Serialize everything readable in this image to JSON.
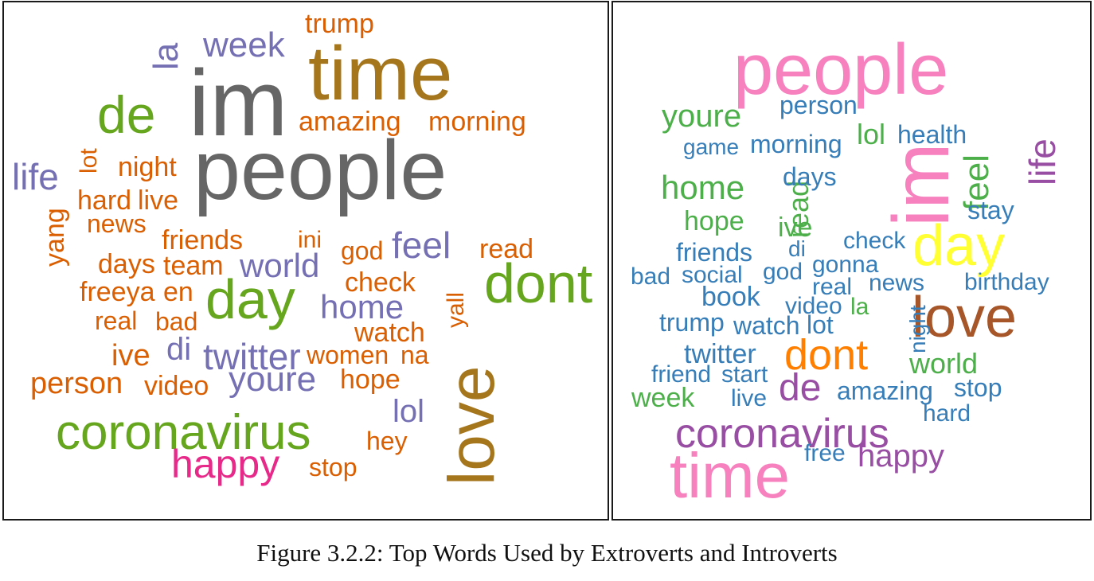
{
  "figure": {
    "caption": "Figure 3.2.2: Top Words Used by Extroverts and Introverts"
  },
  "colors": {
    "grey": "#666666",
    "olive_brown": "#a6761d",
    "green": "#66a61e",
    "orange": "#d95f02",
    "purple": "#7570b3",
    "magenta": "#e7298a",
    "pink": "#f781bf",
    "violet": "#984ea3",
    "steel_blue": "#377eb8",
    "mid_green": "#4daf4a",
    "bright_orange": "#ff7f00",
    "yellow": "#ffff33",
    "brown": "#a65628"
  },
  "extroverts_cloud": {
    "words": [
      {
        "text": "im",
        "color": "#666666",
        "rotated": false
      },
      {
        "text": "people",
        "color": "#666666",
        "rotated": false
      },
      {
        "text": "time",
        "color": "#a6761d",
        "rotated": false
      },
      {
        "text": "love",
        "color": "#a6761d",
        "rotated": true
      },
      {
        "text": "dont",
        "color": "#66a61e",
        "rotated": false
      },
      {
        "text": "day",
        "color": "#66a61e",
        "rotated": false
      },
      {
        "text": "de",
        "color": "#66a61e",
        "rotated": false
      },
      {
        "text": "coronavirus",
        "color": "#66a61e",
        "rotated": false
      },
      {
        "text": "happy",
        "color": "#e7298a",
        "rotated": false
      },
      {
        "text": "trump",
        "color": "#d95f02",
        "rotated": false
      },
      {
        "text": "week",
        "color": "#7570b3",
        "rotated": false
      },
      {
        "text": "la",
        "color": "#7570b3",
        "rotated": true
      },
      {
        "text": "amazing",
        "color": "#d95f02",
        "rotated": false
      },
      {
        "text": "morning",
        "color": "#d95f02",
        "rotated": false
      },
      {
        "text": "life",
        "color": "#7570b3",
        "rotated": false
      },
      {
        "text": "lot",
        "color": "#d95f02",
        "rotated": true
      },
      {
        "text": "night",
        "color": "#d95f02",
        "rotated": false
      },
      {
        "text": "hard",
        "color": "#d95f02",
        "rotated": false
      },
      {
        "text": "live",
        "color": "#d95f02",
        "rotated": false
      },
      {
        "text": "yang",
        "color": "#d95f02",
        "rotated": true
      },
      {
        "text": "news",
        "color": "#d95f02",
        "rotated": false
      },
      {
        "text": "friends",
        "color": "#d95f02",
        "rotated": false
      },
      {
        "text": "ini",
        "color": "#d95f02",
        "rotated": false
      },
      {
        "text": "god",
        "color": "#d95f02",
        "rotated": false
      },
      {
        "text": "feel",
        "color": "#7570b3",
        "rotated": false
      },
      {
        "text": "read",
        "color": "#d95f02",
        "rotated": false
      },
      {
        "text": "days",
        "color": "#d95f02",
        "rotated": false
      },
      {
        "text": "team",
        "color": "#d95f02",
        "rotated": false
      },
      {
        "text": "world",
        "color": "#7570b3",
        "rotated": false
      },
      {
        "text": "freeya",
        "color": "#d95f02",
        "rotated": false
      },
      {
        "text": "en",
        "color": "#d95f02",
        "rotated": false
      },
      {
        "text": "check",
        "color": "#d95f02",
        "rotated": false
      },
      {
        "text": "yall",
        "color": "#d95f02",
        "rotated": true
      },
      {
        "text": "real",
        "color": "#d95f02",
        "rotated": false
      },
      {
        "text": "bad",
        "color": "#d95f02",
        "rotated": false
      },
      {
        "text": "home",
        "color": "#7570b3",
        "rotated": false
      },
      {
        "text": "watch",
        "color": "#d95f02",
        "rotated": false
      },
      {
        "text": "ive",
        "color": "#d95f02",
        "rotated": false
      },
      {
        "text": "di",
        "color": "#7570b3",
        "rotated": false
      },
      {
        "text": "twitter",
        "color": "#7570b3",
        "rotated": false
      },
      {
        "text": "women",
        "color": "#d95f02",
        "rotated": false
      },
      {
        "text": "na",
        "color": "#d95f02",
        "rotated": false
      },
      {
        "text": "person",
        "color": "#d95f02",
        "rotated": false
      },
      {
        "text": "video",
        "color": "#d95f02",
        "rotated": false
      },
      {
        "text": "youre",
        "color": "#7570b3",
        "rotated": false
      },
      {
        "text": "hope",
        "color": "#d95f02",
        "rotated": false
      },
      {
        "text": "lol",
        "color": "#7570b3",
        "rotated": false
      },
      {
        "text": "hey",
        "color": "#d95f02",
        "rotated": false
      },
      {
        "text": "stop",
        "color": "#d95f02",
        "rotated": false
      }
    ]
  },
  "introverts_cloud": {
    "words": [
      {
        "text": "people",
        "color": "#f781bf",
        "rotated": false
      },
      {
        "text": "time",
        "color": "#f781bf",
        "rotated": false
      },
      {
        "text": "im",
        "color": "#f781bf",
        "rotated": true
      },
      {
        "text": "love",
        "color": "#a65628",
        "rotated": false
      },
      {
        "text": "day",
        "color": "#ffff33",
        "rotated": false
      },
      {
        "text": "dont",
        "color": "#ff7f00",
        "rotated": false
      },
      {
        "text": "coronavirus",
        "color": "#984ea3",
        "rotated": false
      },
      {
        "text": "happy",
        "color": "#984ea3",
        "rotated": false
      },
      {
        "text": "de",
        "color": "#984ea3",
        "rotated": false
      },
      {
        "text": "life",
        "color": "#984ea3",
        "rotated": true
      },
      {
        "text": "youre",
        "color": "#4daf4a",
        "rotated": false
      },
      {
        "text": "person",
        "color": "#377eb8",
        "rotated": false
      },
      {
        "text": "game",
        "color": "#377eb8",
        "rotated": false
      },
      {
        "text": "morning",
        "color": "#377eb8",
        "rotated": false
      },
      {
        "text": "lol",
        "color": "#4daf4a",
        "rotated": false
      },
      {
        "text": "health",
        "color": "#377eb8",
        "rotated": false
      },
      {
        "text": "home",
        "color": "#4daf4a",
        "rotated": false
      },
      {
        "text": "read",
        "color": "#4daf4a",
        "rotated": true
      },
      {
        "text": "days",
        "color": "#377eb8",
        "rotated": false
      },
      {
        "text": "feel",
        "color": "#4daf4a",
        "rotated": true
      },
      {
        "text": "stay",
        "color": "#377eb8",
        "rotated": false
      },
      {
        "text": "hope",
        "color": "#4daf4a",
        "rotated": false
      },
      {
        "text": "ive",
        "color": "#4daf4a",
        "rotated": false
      },
      {
        "text": "friends",
        "color": "#377eb8",
        "rotated": false
      },
      {
        "text": "di",
        "color": "#377eb8",
        "rotated": false
      },
      {
        "text": "check",
        "color": "#377eb8",
        "rotated": false
      },
      {
        "text": "gonna",
        "color": "#377eb8",
        "rotated": false
      },
      {
        "text": "bad",
        "color": "#377eb8",
        "rotated": false
      },
      {
        "text": "social",
        "color": "#377eb8",
        "rotated": false
      },
      {
        "text": "god",
        "color": "#377eb8",
        "rotated": false
      },
      {
        "text": "real",
        "color": "#377eb8",
        "rotated": false
      },
      {
        "text": "news",
        "color": "#377eb8",
        "rotated": false
      },
      {
        "text": "birthday",
        "color": "#377eb8",
        "rotated": false
      },
      {
        "text": "book",
        "color": "#377eb8",
        "rotated": false
      },
      {
        "text": "video",
        "color": "#377eb8",
        "rotated": false
      },
      {
        "text": "la",
        "color": "#4daf4a",
        "rotated": false
      },
      {
        "text": "night",
        "color": "#377eb8",
        "rotated": true
      },
      {
        "text": "trump",
        "color": "#377eb8",
        "rotated": false
      },
      {
        "text": "watch",
        "color": "#377eb8",
        "rotated": false
      },
      {
        "text": "lot",
        "color": "#377eb8",
        "rotated": false
      },
      {
        "text": "twitter",
        "color": "#377eb8",
        "rotated": false
      },
      {
        "text": "world",
        "color": "#4daf4a",
        "rotated": false
      },
      {
        "text": "friend",
        "color": "#377eb8",
        "rotated": false
      },
      {
        "text": "start",
        "color": "#377eb8",
        "rotated": false
      },
      {
        "text": "week",
        "color": "#4daf4a",
        "rotated": false
      },
      {
        "text": "live",
        "color": "#377eb8",
        "rotated": false
      },
      {
        "text": "amazing",
        "color": "#377eb8",
        "rotated": false
      },
      {
        "text": "stop",
        "color": "#377eb8",
        "rotated": false
      },
      {
        "text": "hard",
        "color": "#377eb8",
        "rotated": false
      },
      {
        "text": "free",
        "color": "#377eb8",
        "rotated": false
      }
    ]
  }
}
